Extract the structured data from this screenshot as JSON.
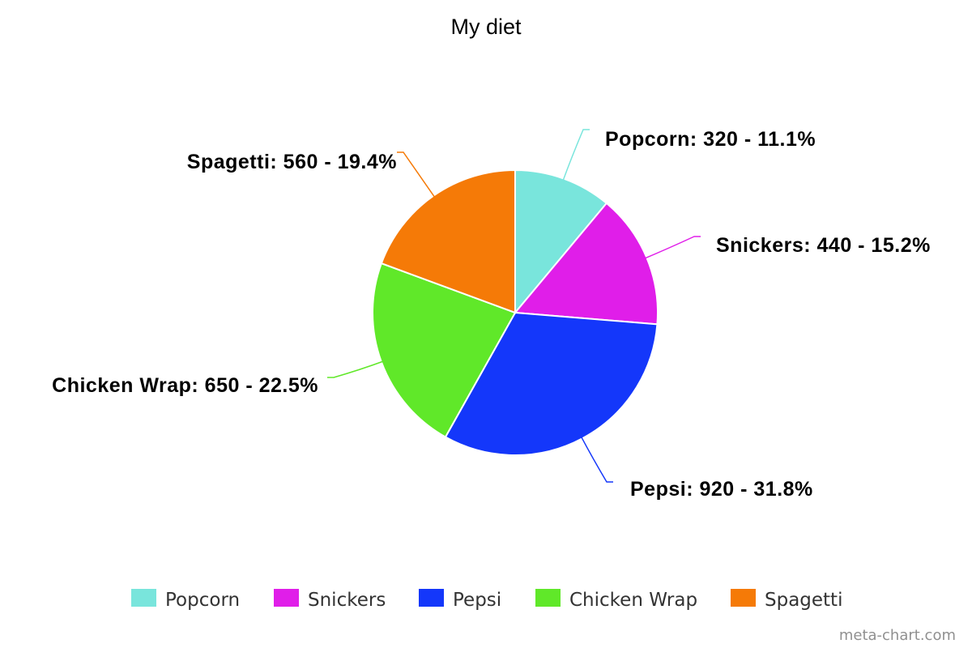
{
  "chart_data": {
    "type": "pie",
    "title": "My diet",
    "categories": [
      "Popcorn",
      "Snickers",
      "Pepsi",
      "Chicken Wrap",
      "Spagetti"
    ],
    "values": [
      320,
      440,
      920,
      650,
      560
    ],
    "percentages": [
      "11.1%",
      "15.2%",
      "31.8%",
      "22.5%",
      "19.4%"
    ],
    "slice_labels": [
      "Popcorn: 320 - 11.1%",
      "Snickers: 440 - 15.2%",
      "Pepsi: 920 - 31.8%",
      "Chicken Wrap: 650 - 22.5%",
      "Spagetti: 560 - 19.4%"
    ],
    "colors": [
      "#79e5dc",
      "#e01ee9",
      "#1437fa",
      "#60e829",
      "#f57a07"
    ],
    "legend": {
      "placement": "bottom",
      "entries": [
        "Popcorn",
        "Snickers",
        "Pepsi",
        "Chicken Wrap",
        "Spagetti"
      ]
    }
  },
  "credit": "meta-chart.com"
}
